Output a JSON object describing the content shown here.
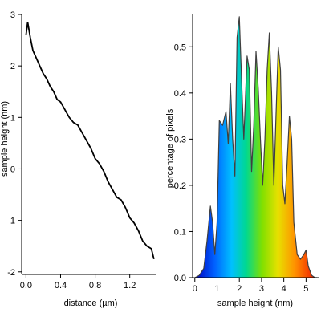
{
  "chart_data": [
    {
      "type": "line",
      "title": "",
      "xlabel": "distance (µm)",
      "ylabel": "sample height (nm)",
      "xlim": [
        -0.05,
        1.5
      ],
      "ylim": [
        -2.05,
        3.0
      ],
      "xticks": [
        0.0,
        0.4,
        0.8,
        1.2
      ],
      "xtick_labels": [
        "0.0",
        "0.4",
        "0.8",
        "1.2"
      ],
      "yticks": [
        -2,
        -1,
        0,
        1,
        2,
        3
      ],
      "ytick_labels": [
        "-2",
        "-1",
        "0",
        "1",
        "2",
        "3"
      ],
      "line_color": "#000000",
      "series": [
        {
          "x": [
            0.0,
            0.02,
            0.05,
            0.08,
            0.12,
            0.16,
            0.2,
            0.24,
            0.28,
            0.32,
            0.36,
            0.4,
            0.45,
            0.5,
            0.55,
            0.6,
            0.65,
            0.7,
            0.75,
            0.8,
            0.85,
            0.9,
            0.95,
            1.0,
            1.05,
            1.1,
            1.15,
            1.2,
            1.25,
            1.3,
            1.35,
            1.4,
            1.45,
            1.48
          ],
          "y": [
            2.6,
            2.85,
            2.55,
            2.3,
            2.15,
            2.0,
            1.85,
            1.75,
            1.6,
            1.5,
            1.35,
            1.3,
            1.15,
            1.0,
            0.9,
            0.85,
            0.7,
            0.55,
            0.4,
            0.2,
            0.1,
            -0.05,
            -0.25,
            -0.4,
            -0.55,
            -0.6,
            -0.75,
            -0.95,
            -1.05,
            -1.2,
            -1.4,
            -1.5,
            -1.55,
            -1.75
          ]
        }
      ]
    },
    {
      "type": "area",
      "title": "",
      "xlabel": "sample height (nm)",
      "ylabel": "percentage of pixels",
      "xlim": [
        -0.1,
        5.6
      ],
      "ylim": [
        0.0,
        0.57
      ],
      "xticks": [
        0,
        1,
        2,
        3,
        4,
        5
      ],
      "xtick_labels": [
        "0",
        "1",
        "2",
        "3",
        "4",
        "5"
      ],
      "yticks": [
        0.0,
        0.1,
        0.2,
        0.3,
        0.4,
        0.5
      ],
      "ytick_labels": [
        "0.0",
        "0.1",
        "0.2",
        "0.3",
        "0.4",
        "0.5"
      ],
      "fill": "rainbow gradient (blue to red along x)",
      "line_color": "#404040",
      "series": [
        {
          "x": [
            0.0,
            0.2,
            0.4,
            0.55,
            0.7,
            0.8,
            0.9,
            1.0,
            1.1,
            1.25,
            1.4,
            1.5,
            1.6,
            1.7,
            1.8,
            1.9,
            2.0,
            2.1,
            2.2,
            2.35,
            2.45,
            2.55,
            2.65,
            2.75,
            2.85,
            2.95,
            3.05,
            3.15,
            3.25,
            3.35,
            3.45,
            3.55,
            3.65,
            3.75,
            3.85,
            3.95,
            4.05,
            4.15,
            4.25,
            4.35,
            4.45,
            4.6,
            4.75,
            4.9,
            5.0,
            5.1,
            5.25,
            5.4,
            5.5
          ],
          "y": [
            0.0,
            0.005,
            0.02,
            0.08,
            0.155,
            0.12,
            0.05,
            0.12,
            0.34,
            0.33,
            0.36,
            0.29,
            0.42,
            0.3,
            0.22,
            0.52,
            0.565,
            0.43,
            0.3,
            0.48,
            0.45,
            0.23,
            0.33,
            0.49,
            0.41,
            0.3,
            0.2,
            0.3,
            0.45,
            0.53,
            0.4,
            0.2,
            0.35,
            0.5,
            0.45,
            0.2,
            0.16,
            0.25,
            0.35,
            0.3,
            0.12,
            0.05,
            0.04,
            0.05,
            0.06,
            0.025,
            0.005,
            0.0,
            0.0
          ]
        }
      ]
    }
  ]
}
